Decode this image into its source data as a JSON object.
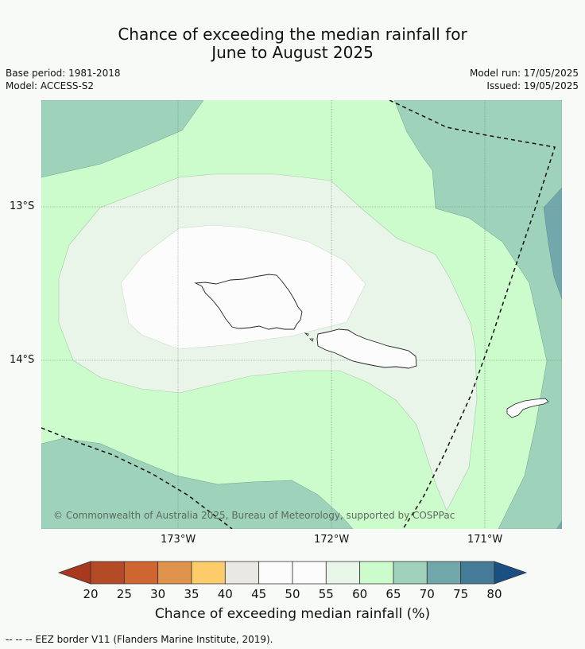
{
  "title": {
    "line1": "Chance of exceeding the median rainfall for",
    "line2": "June to August 2025"
  },
  "meta": {
    "base_period": "Base period: 1981-2018",
    "model": "Model: ACCESS-S2",
    "model_run": "Model run: 17/05/2025",
    "issued": "Issued: 19/05/2025"
  },
  "map": {
    "lat_labels": [
      "13°S",
      "14°S"
    ],
    "lon_labels": [
      "173°W",
      "172°W",
      "171°W"
    ],
    "credit": "© Commonwealth of Australia 2025, Bureau of Meteorology, supported by COSPPac"
  },
  "colorbar": {
    "ticks": [
      "20",
      "25",
      "30",
      "35",
      "40",
      "45",
      "50",
      "55",
      "60",
      "65",
      "70",
      "75",
      "80"
    ],
    "colors": [
      "#a8391e",
      "#b54b26",
      "#cf6530",
      "#e0934a",
      "#fdcc6a",
      "#e9e8e3",
      "#fcfcfc",
      "#fcfcfc",
      "#eaf5e9",
      "#ccfccc",
      "#9ed2bb",
      "#72a8ab",
      "#447c98",
      "#1a4f84"
    ],
    "label": "Chance of exceeding median rainfall (%)"
  },
  "footnote": "--  --  -- EEZ border V11 (Flanders Marine Institute, 2019)."
}
